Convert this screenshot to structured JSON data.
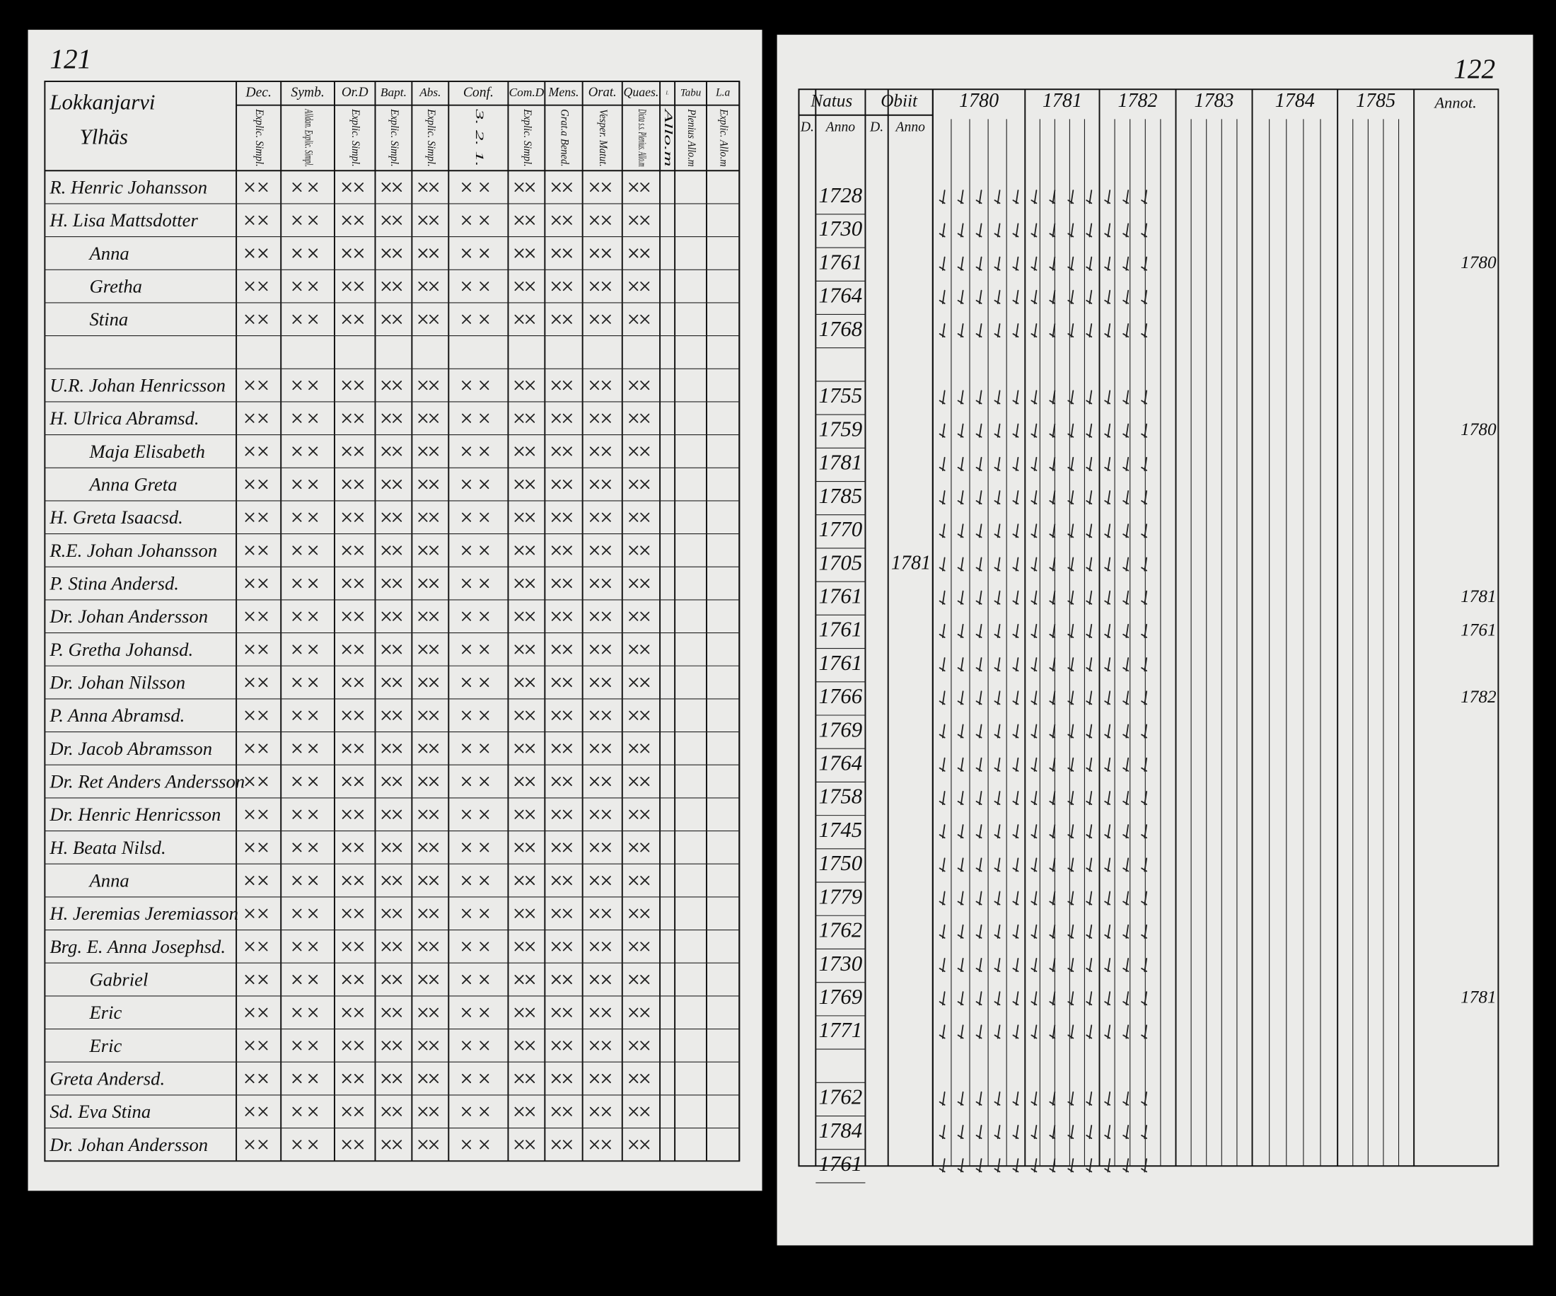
{
  "left_page": {
    "page_number": "121",
    "heading": "Lokkanjarvi",
    "subheading": "Ylhäs",
    "columns": [
      {
        "title": "Dec.",
        "sub": "Explic. Simpl."
      },
      {
        "title": "Symb.",
        "sub": "Alldan. Explic. Simpl."
      },
      {
        "title": "Or.D",
        "sub": "Explic. Simpl."
      },
      {
        "title": "Bapt.",
        "sub": "Explic. Simpl."
      },
      {
        "title": "Abs.",
        "sub": "Explic. Simpl."
      },
      {
        "title": "Conf.",
        "sub": "3. 2. 1."
      },
      {
        "title": "Com.D",
        "sub": "Explic. Simpl."
      },
      {
        "title": "Mens.",
        "sub": "Grat.a Bened."
      },
      {
        "title": "Orat.",
        "sub": "Vesper. Matut."
      },
      {
        "title": "Quaes.",
        "sub": "Dicta s.s. Plenius. Allo.m"
      },
      {
        "title": "I.",
        "sub": "Allo.m"
      },
      {
        "title": "Tabu",
        "sub": "Plenius Allo.m"
      },
      {
        "title": "L.a",
        "sub": "Explic. Allo.m"
      }
    ],
    "rows": [
      "R. Henric Johansson",
      "H. Lisa Mattsdotter",
      "Anna",
      "Gretha",
      "Stina",
      null,
      "U.R. Johan Henricsson",
      "H. Ulrica Abramsd.",
      "Maja Elisabeth",
      "Anna Greta",
      "H. Greta Isaacsd.",
      "R.E. Johan Johansson",
      "P. Stina Andersd.",
      "Dr. Johan Andersson",
      "P. Gretha Johansd.",
      "Dr. Johan Nilsson",
      "P. Anna Abramsd.",
      "Dr. Jacob Abramsson",
      "Dr. Ret Anders Andersson",
      "Dr. Henric Henricsson",
      "H. Beata Nilsd.",
      "Anna",
      "H. Jeremias Jeremiasson",
      "Brg. E. Anna Josephsd.",
      "Gabriel",
      "Eric",
      "Eric",
      "Greta Andersd.",
      "Sd. Eva Stina",
      "Dr. Johan Andersson"
    ]
  },
  "right_page": {
    "page_number": "122",
    "headers": {
      "natus": "Natus",
      "obiit": "Obiit",
      "annot": "Annot.",
      "day": "D.",
      "year": "Anno"
    },
    "years": [
      "1780",
      "1781",
      "1782",
      "1783",
      "1784",
      "1785"
    ],
    "rows": [
      {
        "natus": "1728"
      },
      {
        "natus": "1730"
      },
      {
        "natus": "1761",
        "note": "1780"
      },
      {
        "natus": "1764"
      },
      {
        "natus": "1768"
      },
      null,
      {
        "natus": "1755"
      },
      {
        "natus": "1759",
        "note": "1780"
      },
      {
        "natus": "1781"
      },
      {
        "natus": "1785"
      },
      {
        "natus": "1770"
      },
      {
        "natus": "1705",
        "obiit": "1781"
      },
      {
        "natus": "1761",
        "note": "1781"
      },
      {
        "natus": "1761",
        "note": "1761"
      },
      {
        "natus": "1761"
      },
      {
        "natus": "1766",
        "note": "1782"
      },
      {
        "natus": "1769"
      },
      {
        "natus": "1764"
      },
      {
        "natus": "1758"
      },
      {
        "natus": "1745"
      },
      {
        "natus": "1750"
      },
      {
        "natus": "1779"
      },
      {
        "natus": "1762"
      },
      {
        "natus": "1730"
      },
      {
        "natus": "1769",
        "note": "1781"
      },
      {
        "natus": "1771"
      },
      null,
      {
        "natus": "1762"
      },
      {
        "natus": "1784"
      },
      {
        "natus": "1761"
      }
    ]
  }
}
